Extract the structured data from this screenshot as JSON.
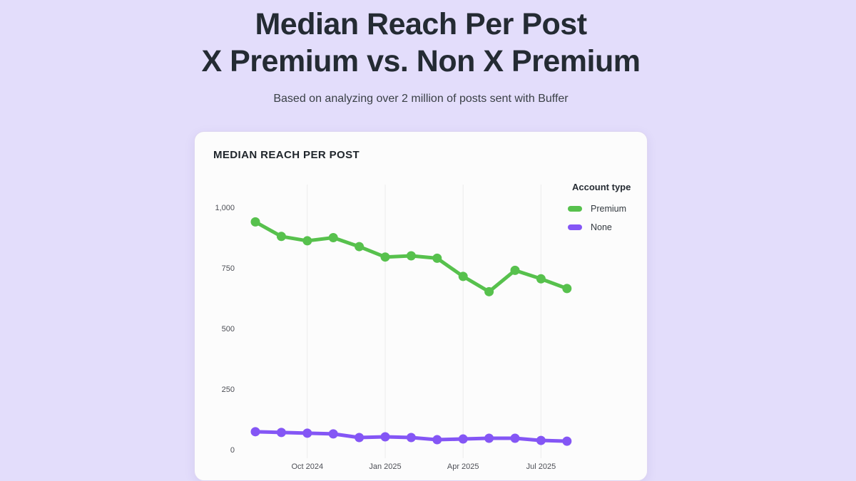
{
  "page": {
    "title_line1": "Median Reach Per Post",
    "title_line2": "X Premium vs. Non X Premium",
    "subtitle": "Based on analyzing over 2 million of posts sent with Buffer"
  },
  "card": {
    "chart_title": "MEDIAN REACH PER POST"
  },
  "colors": {
    "background": "#e3ddfb",
    "card_background": "#fcfcfc",
    "title_text": "#242b33",
    "premium_green": "#57c14d",
    "none_purple": "#8456f5",
    "gridline": "#ececec",
    "axis_text": "#4d4f56"
  },
  "chart_data": {
    "type": "line",
    "title": "MEDIAN REACH PER POST",
    "x": [
      "Aug 2024",
      "Sep 2024",
      "Oct 2024",
      "Nov 2024",
      "Dec 2024",
      "Jan 2025",
      "Feb 2025",
      "Mar 2025",
      "Apr 2025",
      "May 2025",
      "Jun 2025",
      "Jul 2025",
      "Aug 2025"
    ],
    "x_tick_labels": [
      "Oct 2024",
      "Jan 2025",
      "Apr 2025",
      "Jul 2025"
    ],
    "x_tick_month_indices": [
      2,
      5,
      8,
      11
    ],
    "y_ticks": [
      {
        "value": 1000,
        "label": "1,000"
      },
      {
        "value": 750,
        "label": "750"
      },
      {
        "value": 500,
        "label": "500"
      },
      {
        "value": 250,
        "label": "250"
      },
      {
        "value": 0,
        "label": "0"
      }
    ],
    "ylim": [
      0,
      1095
    ],
    "grid": "vertical-only",
    "legend": {
      "title": "Account type",
      "position": "top-right",
      "items": [
        {
          "label": "Premium",
          "color": "#57c14d"
        },
        {
          "label": "None",
          "color": "#8456f5"
        }
      ]
    },
    "series": [
      {
        "name": "None",
        "color": "#8456f5",
        "values": [
          74,
          71,
          68,
          65,
          50,
          53,
          50,
          41,
          44,
          47,
          47,
          38,
          35
        ]
      },
      {
        "name": "Premium",
        "color": "#57c14d",
        "values": [
          940,
          880,
          862,
          875,
          838,
          795,
          800,
          790,
          715,
          652,
          740,
          705,
          665
        ]
      }
    ]
  }
}
